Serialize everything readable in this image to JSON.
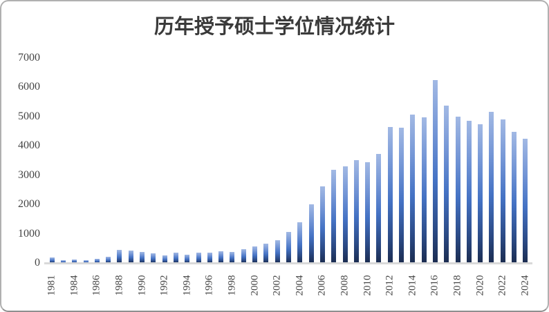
{
  "window": {
    "kind": "excel-style-chart",
    "background": "#ffffff",
    "frame_border_color": "#b0b0b0"
  },
  "chart_data": {
    "type": "bar",
    "title": "历年授予硕士学位情况统计",
    "xlabel": "",
    "ylabel": "",
    "categories": [
      "1981",
      "1982",
      "1984",
      "1985",
      "1986",
      "1987",
      "1988",
      "1989",
      "1990",
      "1991",
      "1992",
      "1993",
      "1994",
      "1995",
      "1996",
      "1997",
      "1998",
      "1999",
      "2000",
      "2001",
      "2002",
      "2003",
      "2004",
      "2005",
      "2006",
      "2007",
      "2008",
      "2009",
      "2010",
      "2011",
      "2012",
      "2013",
      "2014",
      "2015",
      "2016",
      "2017",
      "2018",
      "2019",
      "2020",
      "2021",
      "2022",
      "2023",
      "2024"
    ],
    "values": [
      185,
      85,
      110,
      105,
      135,
      220,
      455,
      430,
      370,
      340,
      260,
      350,
      290,
      350,
      350,
      410,
      380,
      470,
      560,
      660,
      780,
      1070,
      1390,
      2010,
      2620,
      3180,
      3290,
      3510,
      3440,
      3730,
      4650,
      4630,
      5070,
      4970,
      6250,
      5380,
      5000,
      4860,
      4730,
      5150,
      4900,
      4470,
      4240
    ],
    "ylim": [
      0,
      7000
    ],
    "yticks": [
      0,
      1000,
      2000,
      3000,
      4000,
      5000,
      6000,
      7000
    ],
    "x_tick_labels_shown": [
      "1981",
      "1984",
      "1986",
      "1988",
      "1990",
      "1992",
      "1994",
      "1996",
      "1998",
      "2000",
      "2002",
      "2004",
      "2006",
      "2008",
      "2010",
      "2012",
      "2014",
      "2016",
      "2018",
      "2020",
      "2022",
      "2024"
    ],
    "x_tick_step": 2,
    "x_tick_rotation_deg": -90,
    "grid": false,
    "legend": "none",
    "bar_gradient": [
      "#a2b9e4",
      "#4472c4",
      "#1b2c50"
    ],
    "axis_label_color": "#444444",
    "title_color": "#3a3a3a",
    "baseline_color": "#d9d9d9"
  }
}
